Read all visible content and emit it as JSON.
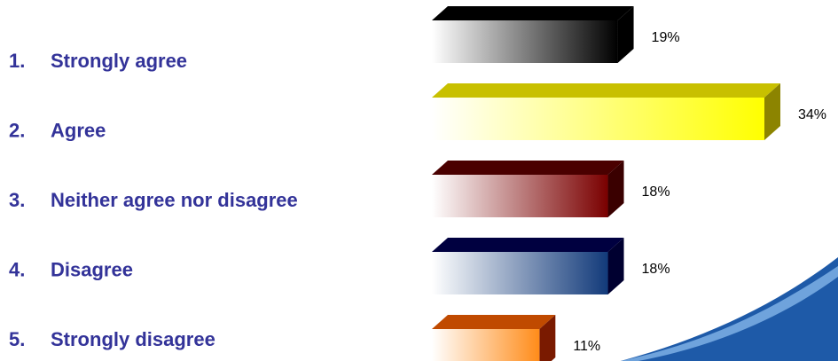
{
  "chart_data": {
    "type": "bar3d",
    "category_numbers": [
      "1.",
      "2.",
      "3.",
      "4.",
      "5."
    ],
    "categories": [
      "Strongly agree",
      "Agree",
      "Neither agree nor disagree",
      "Disagree",
      "Strongly disagree"
    ],
    "values": [
      19,
      34,
      18,
      18,
      11
    ],
    "value_labels": [
      "19%",
      "34%",
      "18%",
      "18%",
      "11%"
    ],
    "colors": [
      "#000000",
      "#ffff00",
      "#7a0000",
      "#123a7a",
      "#ff8c1a"
    ],
    "top_colors": [
      "#000000",
      "#c8c000",
      "#4a0000",
      "#000040",
      "#c04a00"
    ],
    "side_colors": [
      "#000000",
      "#8c8400",
      "#3a0000",
      "#000030",
      "#7a1a00"
    ]
  }
}
